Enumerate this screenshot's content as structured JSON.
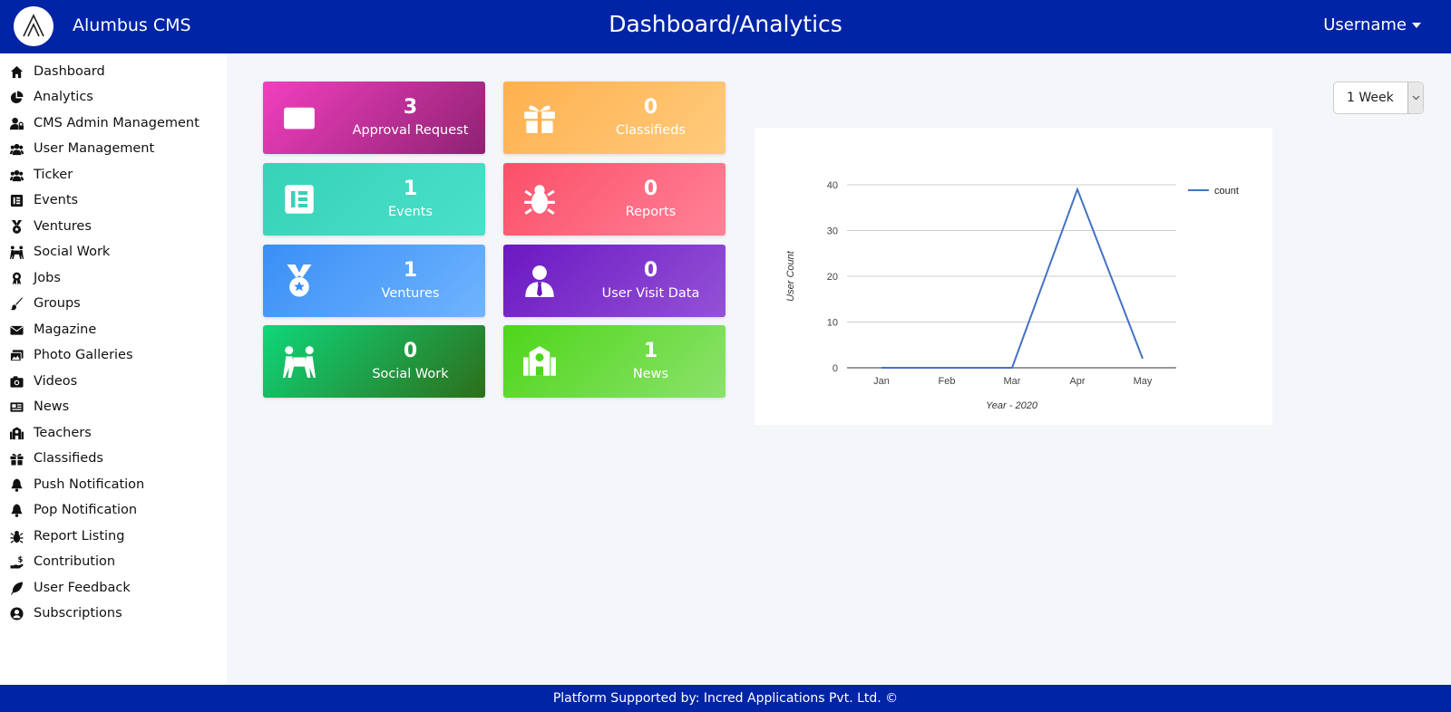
{
  "app": {
    "brand": "Alumbus CMS",
    "page_title": "Dashboard/Analytics",
    "user_menu": "Username"
  },
  "sidebar": {
    "items": [
      {
        "label": "Dashboard",
        "icon": "home-icon"
      },
      {
        "label": "Analytics",
        "icon": "pie-chart-icon"
      },
      {
        "label": "CMS Admin Management",
        "icon": "user-lock-icon"
      },
      {
        "label": "User Management",
        "icon": "users-icon"
      },
      {
        "label": "Ticker",
        "icon": "users-icon"
      },
      {
        "label": "Events",
        "icon": "elementor-icon"
      },
      {
        "label": "Ventures",
        "icon": "medal-icon"
      },
      {
        "label": "Social Work",
        "icon": "people-carry-icon"
      },
      {
        "label": "Jobs",
        "icon": "award-icon"
      },
      {
        "label": "Groups",
        "icon": "paint-brush-icon"
      },
      {
        "label": "Magazine",
        "icon": "envelope-icon"
      },
      {
        "label": "Photo Galleries",
        "icon": "images-icon"
      },
      {
        "label": "Videos",
        "icon": "camera-icon"
      },
      {
        "label": "News",
        "icon": "newspaper-icon"
      },
      {
        "label": "Teachers",
        "icon": "school-icon"
      },
      {
        "label": "Classifieds",
        "icon": "gift-icon"
      },
      {
        "label": "Push Notification",
        "icon": "bell-icon"
      },
      {
        "label": "Pop Notification",
        "icon": "bell-icon"
      },
      {
        "label": "Report Listing",
        "icon": "bug-icon"
      },
      {
        "label": "Contribution",
        "icon": "hand-holding-usd-icon"
      },
      {
        "label": "User Feedback",
        "icon": "feather-icon"
      },
      {
        "label": "Subscriptions",
        "icon": "user-circle-icon"
      }
    ]
  },
  "cards": [
    {
      "value": "3",
      "label": "Approval Request",
      "icon": "envelope-icon",
      "colors": [
        "#f23fbf",
        "#8e2273"
      ]
    },
    {
      "value": "0",
      "label": "Classifieds",
      "icon": "gift-icon",
      "colors": [
        "#ffb04e",
        "#ffcb7c"
      ]
    },
    {
      "value": "1",
      "label": "Events",
      "icon": "elementor-icon",
      "colors": [
        "#37d2b8",
        "#4ae0c9"
      ]
    },
    {
      "value": "0",
      "label": "Reports",
      "icon": "bug-icon",
      "colors": [
        "#fb4f69",
        "#ff8296"
      ]
    },
    {
      "value": "1",
      "label": "Ventures",
      "icon": "medal-icon",
      "colors": [
        "#3a8ff6",
        "#6fb4fe"
      ]
    },
    {
      "value": "0",
      "label": "User Visit Data",
      "icon": "user-tie-icon",
      "colors": [
        "#6b18c2",
        "#9452d6"
      ]
    },
    {
      "value": "0",
      "label": "Social Work",
      "icon": "people-carry-icon",
      "colors": [
        "#0fd77a",
        "#2d6e1b"
      ]
    },
    {
      "value": "1",
      "label": "News",
      "icon": "school-icon",
      "colors": [
        "#4ed61a",
        "#8ce26b"
      ]
    }
  ],
  "range_select": {
    "value": "1 Week"
  },
  "chart_data": {
    "type": "line",
    "categories": [
      "Jan",
      "Feb",
      "Mar",
      "Apr",
      "May"
    ],
    "series": [
      {
        "name": "count",
        "values": [
          0,
          0,
          0,
          39,
          2
        ]
      }
    ],
    "title": "",
    "xlabel": "Year - 2020",
    "ylabel": "User Count",
    "ylim": [
      0,
      40
    ],
    "yticks": [
      0,
      10,
      20,
      30,
      40
    ],
    "grid": true,
    "legend": "top-right",
    "color": "#4472c4"
  },
  "footer": {
    "text": "Platform Supported by: Incred Applications Pvt. Ltd. ©"
  }
}
